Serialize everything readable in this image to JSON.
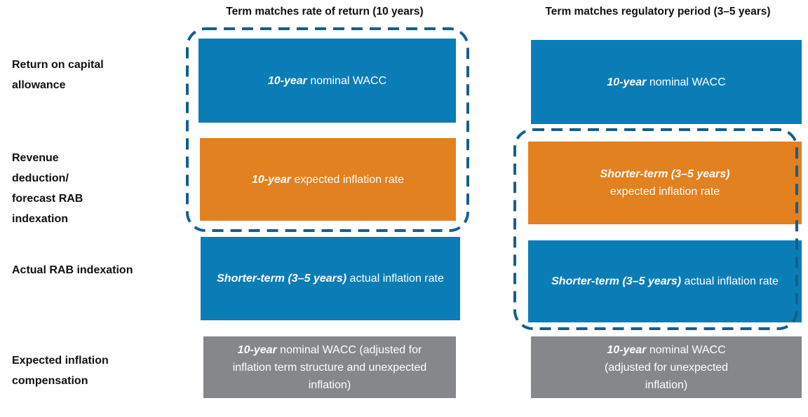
{
  "columns": [
    "Term matches rate of return (10 years)",
    "Term matches regulatory period (3–5 years)"
  ],
  "rows": [
    "Return on capital allowance",
    "Revenue deduction/ forecast RAB indexation",
    "Actual RAB indexation",
    "Expected inflation compensation"
  ],
  "cells": [
    [
      {
        "lead": "10-year",
        "rest": "nominal WACC"
      },
      {
        "lead": "10-year",
        "rest": "nominal WACC"
      }
    ],
    [
      {
        "lead": "10-year",
        "rest": "expected inflation rate"
      },
      {
        "lead": "Shorter-term (3–5 years)",
        "rest": "expected inflation rate"
      }
    ],
    [
      {
        "lead": "Shorter-term (3–5 years)",
        "rest": "actual inflation rate"
      },
      {
        "lead": "Shorter-term (3–5 years)",
        "rest": "actual inflation rate"
      }
    ],
    [
      {
        "lead": "10-year",
        "rest": "nominal WACC (adjusted for inflation term structure and unexpected inflation)"
      },
      {
        "lead": "10-year",
        "rest": "nominal WACC (adjusted for unexpected inflation)"
      }
    ]
  ]
}
